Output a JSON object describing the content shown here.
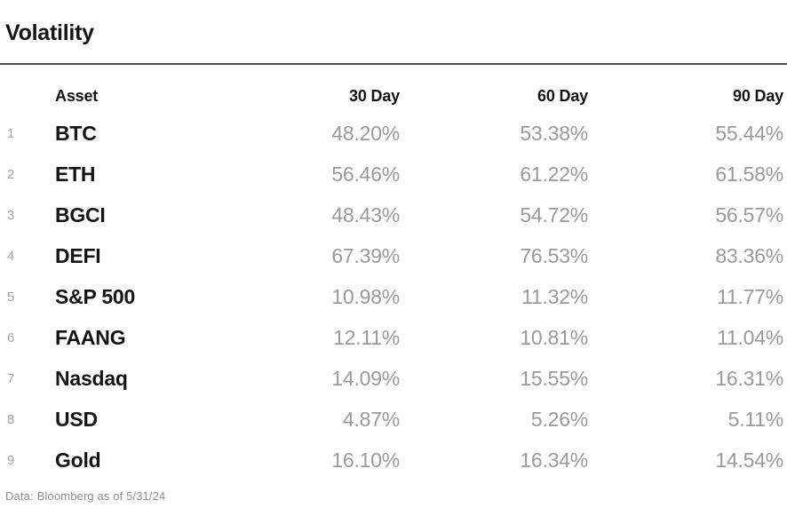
{
  "title": "Volatility",
  "table": {
    "columns": [
      "Asset",
      "30 Day",
      "60 Day",
      "90 Day"
    ],
    "rows": [
      {
        "rank": "1",
        "asset": "BTC",
        "d30": "48.20%",
        "d60": "53.38%",
        "d90": "55.44%"
      },
      {
        "rank": "2",
        "asset": "ETH",
        "d30": "56.46%",
        "d60": "61.22%",
        "d90": "61.58%"
      },
      {
        "rank": "3",
        "asset": "BGCI",
        "d30": "48.43%",
        "d60": "54.72%",
        "d90": "56.57%"
      },
      {
        "rank": "4",
        "asset": "DEFI",
        "d30": "67.39%",
        "d60": "76.53%",
        "d90": "83.36%"
      },
      {
        "rank": "5",
        "asset": "S&P 500",
        "d30": "10.98%",
        "d60": "11.32%",
        "d90": "11.77%"
      },
      {
        "rank": "6",
        "asset": "FAANG",
        "d30": "12.11%",
        "d60": "10.81%",
        "d90": "11.04%"
      },
      {
        "rank": "7",
        "asset": "Nasdaq",
        "d30": "14.09%",
        "d60": "15.55%",
        "d90": "16.31%"
      },
      {
        "rank": "8",
        "asset": "USD",
        "d30": "4.87%",
        "d60": "5.26%",
        "d90": "5.11%"
      },
      {
        "rank": "9",
        "asset": "Gold",
        "d30": "16.10%",
        "d60": "16.34%",
        "d90": "14.54%"
      }
    ]
  },
  "footer": {
    "label": "Data:",
    "text": "Bloomberg as of 5/31/24"
  },
  "colors": {
    "background": "#ffffff",
    "text_primary": "#141414",
    "value_gray": "#9a9a9a",
    "row_number_gray": "#a6a6a6",
    "footer_gray": "#8f8f8f",
    "divider": "#4f4f4f"
  },
  "chart_data": {
    "type": "table",
    "title": "Volatility",
    "columns": [
      "Asset",
      "30 Day",
      "60 Day",
      "90 Day"
    ],
    "categories": [
      "BTC",
      "ETH",
      "BGCI",
      "DEFI",
      "S&P 500",
      "FAANG",
      "Nasdaq",
      "USD",
      "Gold"
    ],
    "series": [
      {
        "name": "30 Day",
        "values": [
          48.2,
          56.46,
          48.43,
          67.39,
          10.98,
          12.11,
          14.09,
          4.87,
          16.1
        ]
      },
      {
        "name": "60 Day",
        "values": [
          53.38,
          61.22,
          54.72,
          76.53,
          11.32,
          10.81,
          15.55,
          5.26,
          16.34
        ]
      },
      {
        "name": "90 Day",
        "values": [
          55.44,
          61.58,
          56.57,
          83.36,
          11.77,
          11.04,
          16.31,
          5.11,
          14.54
        ]
      }
    ],
    "unit": "%",
    "source": "Data: Bloomberg as of 5/31/24",
    "layout": "row-numbered table, asset column left-aligned, value columns right-aligned, values in gray"
  }
}
